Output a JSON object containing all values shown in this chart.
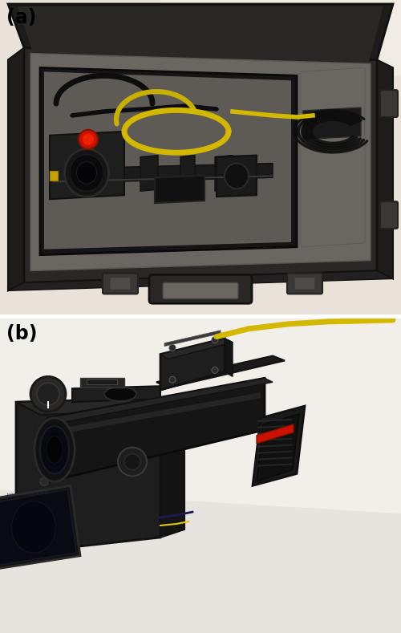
{
  "figure_width": 5.0,
  "figure_height": 7.89,
  "dpi": 100,
  "bg_color": "#ffffff",
  "panel_a_label": "(a)",
  "panel_b_label": "(b)",
  "label_fontsize": 17,
  "label_fontweight": "bold",
  "label_color": "#000000",
  "panel_a_bg": "#e8e4dc",
  "panel_b_bg": "#f0ece6",
  "case_dark": "#1a1a1a",
  "case_mid": "#2e2e2e",
  "foam_color": "#7a7672",
  "foam_dark": "#5a5652",
  "tray_inner": "#4a4844",
  "yellow_cable": "#d4b800",
  "black_cable": "#111111",
  "white_bg": "#f5f2ee"
}
